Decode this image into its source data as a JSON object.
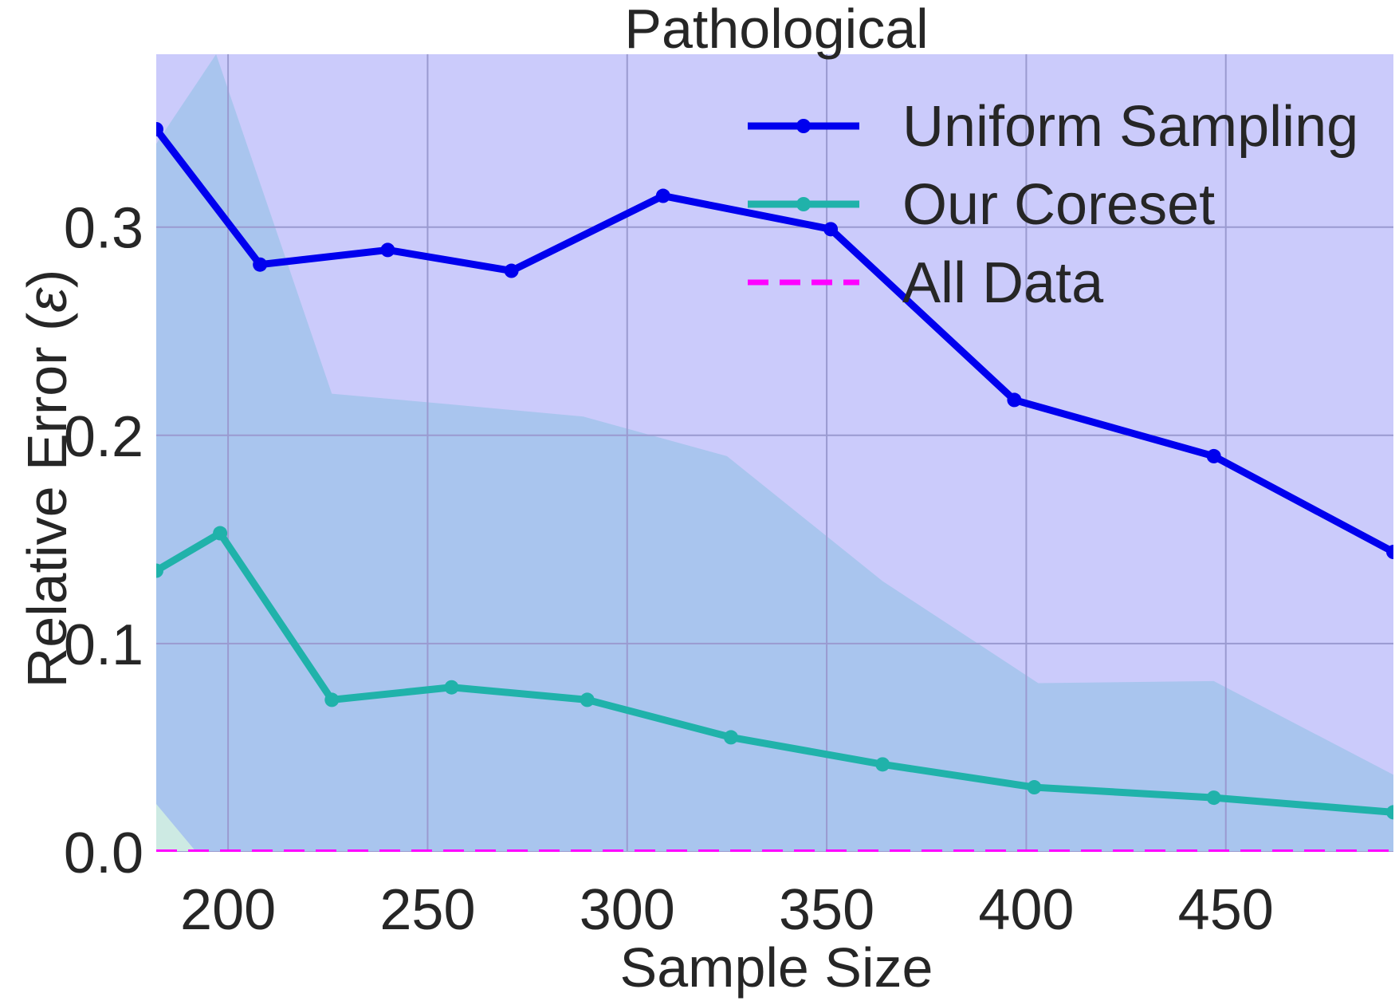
{
  "chart_data": {
    "type": "line",
    "title": "Pathological",
    "xlabel": "Sample Size",
    "ylabel_text": "Relative Error (",
    "ylabel_symbol": "ε",
    "ylabel_close": ")",
    "xlim": [
      182,
      492
    ],
    "ylim": [
      0,
      0.383
    ],
    "xticks": [
      200,
      250,
      300,
      350,
      400,
      450
    ],
    "yticks": [
      0.0,
      0.1,
      0.2,
      0.3
    ],
    "ytick_labels": [
      "0.0",
      "0.1",
      "0.2",
      "0.3"
    ],
    "grid": true,
    "background": "#cbcbfb",
    "legend_position": "top-right",
    "series": [
      {
        "name": "Uniform Sampling",
        "color": "#0000ee",
        "marker": "circle",
        "x": [
          182,
          208,
          240,
          271,
          309,
          351,
          397,
          447,
          492
        ],
        "y": [
          0.347,
          0.282,
          0.289,
          0.279,
          0.315,
          0.299,
          0.217,
          0.19,
          0.144
        ],
        "band_upper": [
          0.34,
          0.383,
          0.22,
          0.215,
          0.209,
          0.19,
          0.13,
          0.081,
          0.082,
          0.037
        ],
        "band_lower": [
          0,
          0,
          0,
          0,
          0,
          0,
          0,
          0,
          0,
          0
        ],
        "band_x": [
          182,
          197,
          226,
          255,
          289,
          325,
          364,
          403,
          447,
          492
        ],
        "band_color": "#a9c5ee"
      },
      {
        "name": "Our Coreset",
        "color": "#20b2aa",
        "marker": "circle",
        "x": [
          182,
          198,
          226,
          256,
          290,
          326,
          364,
          402,
          447,
          492
        ],
        "y": [
          0.135,
          0.153,
          0.073,
          0.079,
          0.073,
          0.055,
          0.042,
          0.031,
          0.026,
          0.019
        ],
        "band_x": [
          182,
          192
        ],
        "band_upper": [
          0.023,
          0.0
        ],
        "band_color": "#cdeae3"
      },
      {
        "name": "All Data",
        "color": "#ff00ff",
        "dashed": true,
        "x": [
          182,
          492
        ],
        "y": [
          0,
          0
        ]
      }
    ]
  }
}
